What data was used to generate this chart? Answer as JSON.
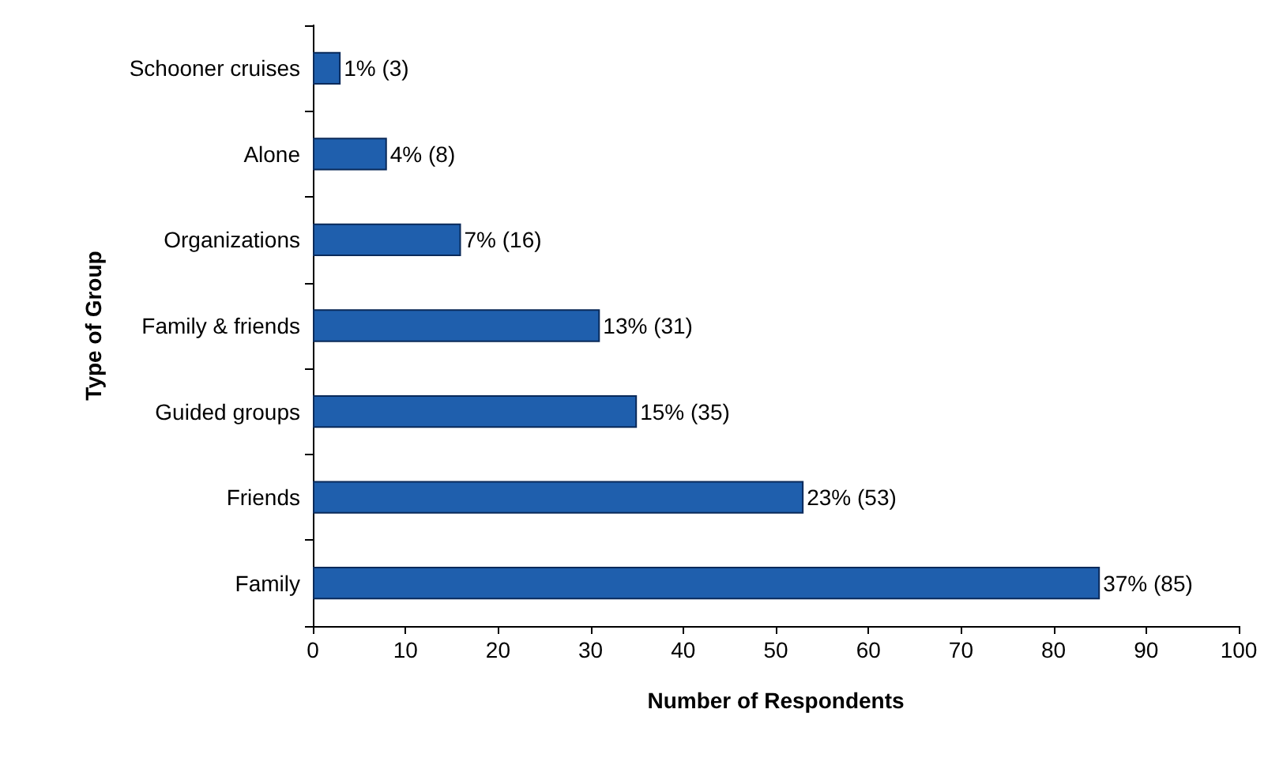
{
  "chart_data": {
    "type": "bar",
    "orientation": "horizontal",
    "xlabel": "Number of Respondents",
    "ylabel": "Type of Group",
    "categories": [
      "Schooner cruises",
      "Alone",
      "Organizations",
      "Family & friends",
      "Guided groups",
      "Friends",
      "Family"
    ],
    "values": [
      3,
      8,
      16,
      31,
      35,
      53,
      85
    ],
    "value_labels": [
      "1% (3)",
      "4% (8)",
      "7% (16)",
      "13% (31)",
      "15% (35)",
      "23% (53)",
      "37% (85)"
    ],
    "color": "#1f5fad",
    "xlim": [
      0,
      100
    ],
    "xticks": [
      0,
      10,
      20,
      30,
      40,
      50,
      60,
      70,
      80,
      90,
      100
    ],
    "grid": false
  }
}
